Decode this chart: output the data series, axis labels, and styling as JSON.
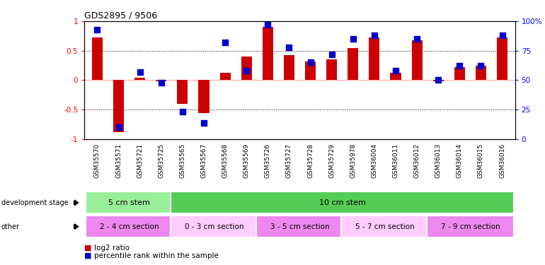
{
  "title": "GDS2895 / 9506",
  "samples": [
    "GSM35570",
    "GSM35571",
    "GSM35721",
    "GSM35725",
    "GSM35565",
    "GSM35567",
    "GSM35568",
    "GSM35569",
    "GSM35726",
    "GSM35727",
    "GSM35728",
    "GSM35729",
    "GSM35978",
    "GSM36004",
    "GSM36011",
    "GSM36012",
    "GSM36013",
    "GSM36014",
    "GSM36015",
    "GSM36016"
  ],
  "log2_ratio": [
    0.72,
    -0.88,
    0.04,
    -0.02,
    -0.4,
    -0.56,
    0.12,
    0.4,
    0.9,
    0.42,
    0.32,
    0.35,
    0.55,
    0.72,
    0.12,
    0.68,
    -0.02,
    0.22,
    0.25,
    0.72
  ],
  "percentile": [
    93,
    10,
    57,
    48,
    23,
    14,
    82,
    58,
    97,
    78,
    65,
    72,
    85,
    88,
    58,
    85,
    50,
    62,
    62,
    88
  ],
  "bar_color": "#cc0000",
  "dot_color": "#0000cc",
  "dev_stage_groups": [
    {
      "label": "5 cm stem",
      "start": 0,
      "end": 3,
      "color": "#99ee99"
    },
    {
      "label": "10 cm stem",
      "start": 4,
      "end": 19,
      "color": "#55cc55"
    }
  ],
  "other_groups": [
    {
      "label": "2 - 4 cm section",
      "start": 0,
      "end": 3,
      "color": "#ee88ee"
    },
    {
      "label": "0 - 3 cm section",
      "start": 4,
      "end": 7,
      "color": "#ffccff"
    },
    {
      "label": "3 - 5 cm section",
      "start": 8,
      "end": 11,
      "color": "#ee88ee"
    },
    {
      "label": "5 - 7 cm section",
      "start": 12,
      "end": 15,
      "color": "#ffccff"
    },
    {
      "label": "7 - 9 cm section",
      "start": 16,
      "end": 19,
      "color": "#ee88ee"
    }
  ],
  "ylim": [
    -1,
    1
  ],
  "y2lim": [
    0,
    100
  ],
  "yticks": [
    -1,
    -0.5,
    0,
    0.5,
    1
  ],
  "y2ticks": [
    0,
    25,
    50,
    75,
    100
  ],
  "background_color": "#ffffff"
}
